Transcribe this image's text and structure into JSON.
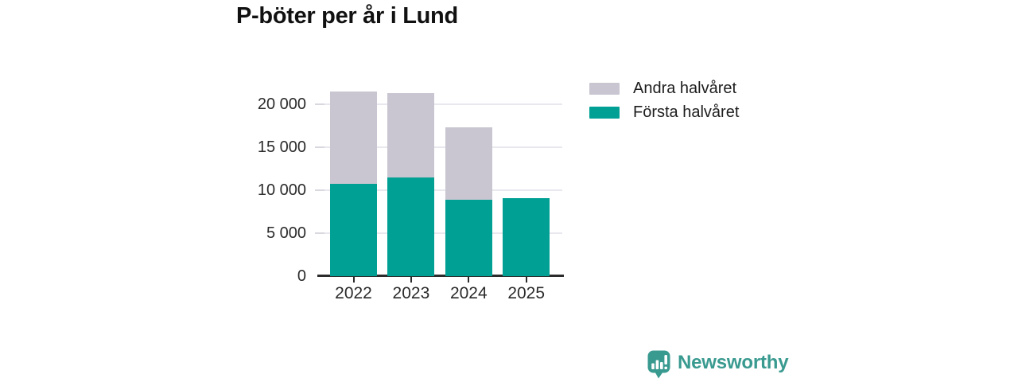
{
  "title": "P-böter per år i Lund",
  "footer": {
    "brand": "Newsworthy"
  },
  "colors": {
    "first_half": "#00a094",
    "second_half": "#c9c6d1",
    "brand_teal": "#399a90",
    "axis": "#2b2b2b",
    "grid": "#e9e8ee",
    "background": "#ffffff"
  },
  "chart_data": {
    "type": "bar",
    "stacked": true,
    "title": "P-böter per år i Lund",
    "categories": [
      "2022",
      "2023",
      "2024",
      "2025"
    ],
    "series": [
      {
        "name": "Första halvåret",
        "color": "#00a094",
        "values": [
          10700,
          11500,
          8900,
          9100
        ]
      },
      {
        "name": "Andra halvåret",
        "color": "#c9c6d1",
        "values": [
          10800,
          9800,
          8400,
          0
        ]
      }
    ],
    "totals": [
      21500,
      21300,
      17300,
      9100
    ],
    "legend": [
      {
        "label": "Andra halvåret",
        "color": "#c9c6d1"
      },
      {
        "label": "Första halvåret",
        "color": "#00a094"
      }
    ],
    "xlabel": "",
    "ylabel": "",
    "ylim": [
      0,
      21500
    ],
    "yticks": [
      0,
      5000,
      10000,
      15000,
      20000
    ],
    "ytick_labels": [
      "0",
      "5 000",
      "10 000",
      "15 000",
      "20 000"
    ],
    "grid": "horizontal",
    "legend_position": "right"
  }
}
